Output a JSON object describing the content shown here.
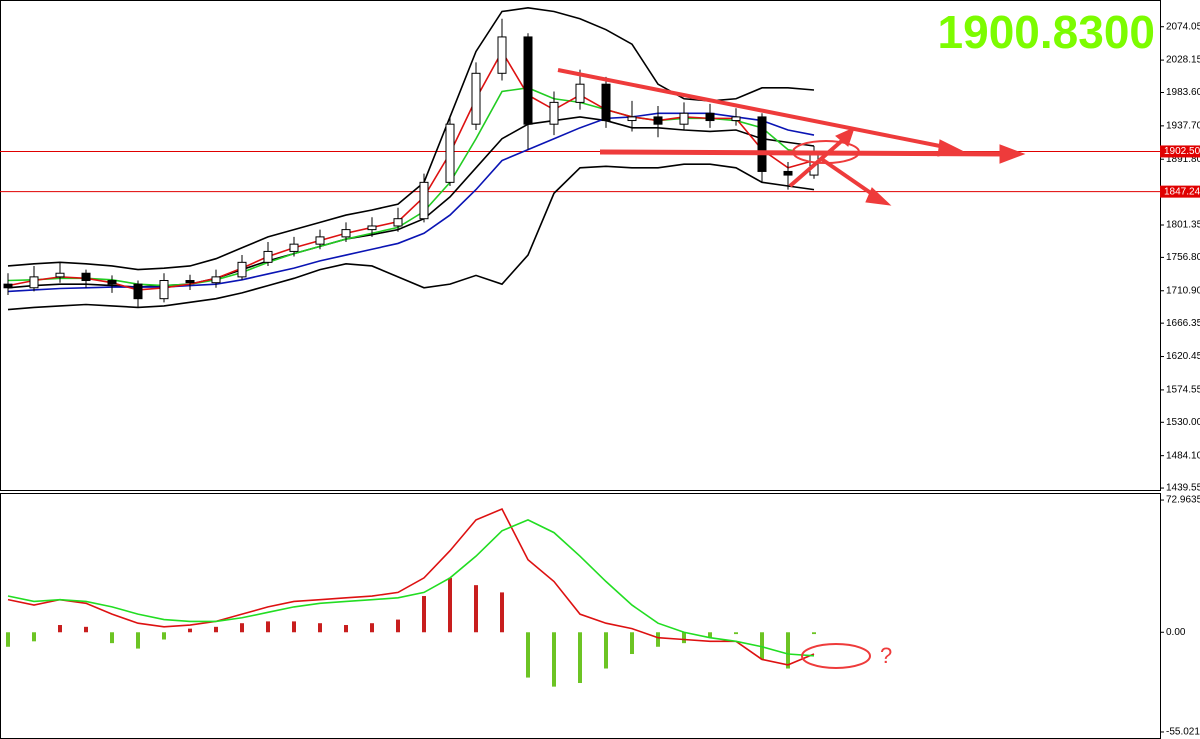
{
  "chart_data": [
    {
      "type": "candlestick",
      "open": [
        1720,
        1715,
        1730,
        1735,
        1725,
        1720,
        1700,
        1725,
        1722,
        1730,
        1750,
        1765,
        1775,
        1785,
        1795,
        1800,
        1810,
        1860,
        1940,
        2010,
        2060,
        1940,
        1970,
        1995,
        1945,
        1950,
        1940,
        1955,
        1945,
        1950,
        1875,
        1870
      ],
      "high": [
        1735,
        1745,
        1750,
        1740,
        1732,
        1725,
        1735,
        1733,
        1740,
        1760,
        1778,
        1785,
        1795,
        1805,
        1812,
        1825,
        1872,
        1952,
        2025,
        2085,
        2065,
        1985,
        2015,
        2005,
        1972,
        1965,
        1970,
        1968,
        1962,
        1955,
        1888,
        1910
      ],
      "low": [
        1705,
        1710,
        1722,
        1715,
        1708,
        1688,
        1695,
        1712,
        1715,
        1726,
        1745,
        1758,
        1768,
        1778,
        1785,
        1792,
        1805,
        1855,
        1932,
        2000,
        1905,
        1925,
        1960,
        1935,
        1930,
        1922,
        1932,
        1935,
        1938,
        1860,
        1850,
        1865
      ],
      "close": [
        1715,
        1730,
        1735,
        1725,
        1720,
        1700,
        1725,
        1722,
        1730,
        1750,
        1765,
        1775,
        1785,
        1795,
        1800,
        1810,
        1860,
        1940,
        2010,
        2060,
        1940,
        1970,
        1995,
        1945,
        1950,
        1940,
        1955,
        1945,
        1950,
        1875,
        1870,
        1900
      ],
      "series": [
        {
          "color": "#000000",
          "values": [
            1745,
            1748,
            1750,
            1748,
            1745,
            1740,
            1742,
            1745,
            1755,
            1770,
            1785,
            1795,
            1805,
            1815,
            1822,
            1830,
            1860,
            1950,
            2040,
            2095,
            2100,
            2095,
            2085,
            2070,
            2050,
            1995,
            1975,
            1972,
            1975,
            1990,
            1990,
            1987
          ]
        },
        {
          "color": "#000000",
          "values": [
            1715,
            1718,
            1720,
            1720,
            1718,
            1716,
            1718,
            1720,
            1728,
            1740,
            1752,
            1762,
            1772,
            1782,
            1788,
            1795,
            1810,
            1840,
            1880,
            1920,
            1940,
            1945,
            1950,
            1945,
            1935,
            1935,
            1932,
            1930,
            1932,
            1920,
            1915,
            1910
          ]
        },
        {
          "color": "#000000",
          "values": [
            1685,
            1688,
            1690,
            1692,
            1690,
            1688,
            1690,
            1695,
            1700,
            1708,
            1718,
            1728,
            1740,
            1748,
            1745,
            1730,
            1715,
            1720,
            1732,
            1720,
            1760,
            1845,
            1880,
            1882,
            1880,
            1880,
            1885,
            1885,
            1880,
            1860,
            1855,
            1850
          ]
        },
        {
          "color": "#0a14b4",
          "values": [
            1710,
            1712,
            1714,
            1715,
            1716,
            1716,
            1716,
            1718,
            1720,
            1726,
            1734,
            1742,
            1752,
            1760,
            1768,
            1776,
            1790,
            1815,
            1850,
            1890,
            1905,
            1920,
            1935,
            1948,
            1950,
            1955,
            1955,
            1955,
            1950,
            1945,
            1932,
            1925
          ]
        },
        {
          "color": "#22cc22",
          "values": [
            1725,
            1726,
            1728,
            1728,
            1726,
            1720,
            1718,
            1720,
            1726,
            1736,
            1750,
            1762,
            1772,
            1782,
            1790,
            1798,
            1820,
            1860,
            1920,
            1985,
            1990,
            1975,
            1970,
            1960,
            1950,
            1945,
            1948,
            1948,
            1945,
            1935,
            1905,
            1898
          ]
        },
        {
          "color": "#dd1111",
          "values": [
            1718,
            1725,
            1730,
            1728,
            1722,
            1712,
            1715,
            1720,
            1728,
            1742,
            1758,
            1770,
            1780,
            1790,
            1798,
            1806,
            1840,
            1900,
            1975,
            2040,
            1980,
            1960,
            1980,
            1960,
            1950,
            1945,
            1950,
            1948,
            1948,
            1905,
            1880,
            1890
          ]
        }
      ],
      "ylim": [
        1435.5,
        2110.8
      ],
      "yticks": [
        2074.05,
        2028.15,
        {
          "value": 1983.6,
          "label": "1983.60"
        },
        {
          "value": 1937.7,
          "label": "1937.70"
        },
        {
          "value": 1891.8,
          "label": "1891.80"
        },
        1801.35,
        {
          "value": 1756.8,
          "label": "1756.80"
        },
        {
          "value": 1710.9,
          "label": "1710.90"
        },
        1666.35,
        1620.45,
        1574.55,
        {
          "value": 1530,
          "label": "1530.00"
        },
        {
          "value": 1484.1,
          "label": "1484.10"
        },
        1439.55
      ],
      "hlines": [
        {
          "value": 1902.5,
          "label": "1902.50"
        },
        {
          "value": 1847.24,
          "label": "1847.24"
        }
      ],
      "annotation": "1900.8300"
    },
    {
      "type": "macd",
      "histogram": [
        -8,
        -5,
        4,
        3,
        -6,
        -9,
        -4,
        2,
        3,
        5,
        6,
        6,
        5,
        4,
        5,
        7,
        20,
        30,
        26,
        22,
        -25,
        -30,
        -28,
        -20,
        -12,
        -8,
        -6,
        -3,
        -1,
        -15,
        -20,
        -1
      ],
      "up_color": "#c81e1e",
      "down_color": "#6cc424",
      "series": [
        {
          "color": "#dd1111",
          "values": [
            18,
            15,
            18,
            16,
            10,
            5,
            3,
            4,
            6,
            10,
            14,
            17,
            18,
            19,
            20,
            22,
            30,
            45,
            62,
            68,
            40,
            28,
            10,
            5,
            2,
            -3,
            -4,
            -5,
            -5,
            -15,
            -18,
            -12
          ]
        },
        {
          "color": "#22dd22",
          "values": [
            20,
            17,
            18,
            17,
            14,
            10,
            7,
            6,
            6,
            8,
            11,
            14,
            16,
            17,
            18,
            19,
            22,
            30,
            42,
            56,
            62,
            55,
            42,
            28,
            15,
            5,
            0,
            -3,
            -5,
            -8,
            -12,
            -13
          ]
        }
      ],
      "ylim": [
        -58.9,
        76.3
      ],
      "yticks": [
        72.9635,
        {
          "value": 0,
          "label": "0.00"
        },
        -55.0213
      ],
      "annotation": "?"
    }
  ]
}
